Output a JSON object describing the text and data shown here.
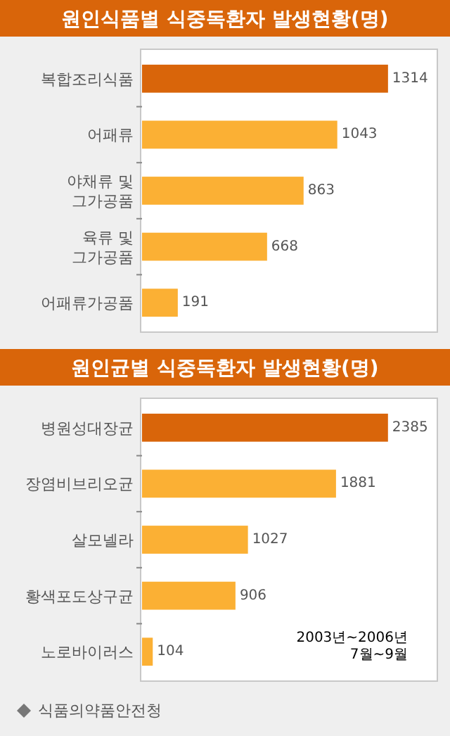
{
  "chart_data": [
    {
      "type": "bar",
      "orientation": "horizontal",
      "title": "원인식품별 식중독환자 발생현황(명)",
      "categories": [
        "복합조리식품",
        "어패류",
        "야채류 및\n그가공품",
        "육류 및\n그가공품",
        "어패류가공품"
      ],
      "values": [
        1314,
        1043,
        863,
        668,
        191
      ],
      "colors": [
        "#d9650a",
        "#fbb034",
        "#fbb034",
        "#fbb034",
        "#fbb034"
      ],
      "xlim": [
        0,
        1570
      ],
      "tick_labels": "y",
      "data_labels": true
    },
    {
      "type": "bar",
      "orientation": "horizontal",
      "title": "원인균별 식중독환자 발생현황(명)",
      "categories": [
        "병원성대장균",
        "장염비브리오균",
        "살모넬라",
        "황색포도상구균",
        "노로바이러스"
      ],
      "values": [
        2385,
        1881,
        1027,
        906,
        104
      ],
      "colors": [
        "#d9650a",
        "#fbb034",
        "#fbb034",
        "#fbb034",
        "#fbb034"
      ],
      "xlim": [
        0,
        2850
      ],
      "tick_labels": "y",
      "data_labels": true,
      "annotations": [
        "2003년~2006년\n7월~9월",
        "식품의약품안전청"
      ]
    }
  ]
}
